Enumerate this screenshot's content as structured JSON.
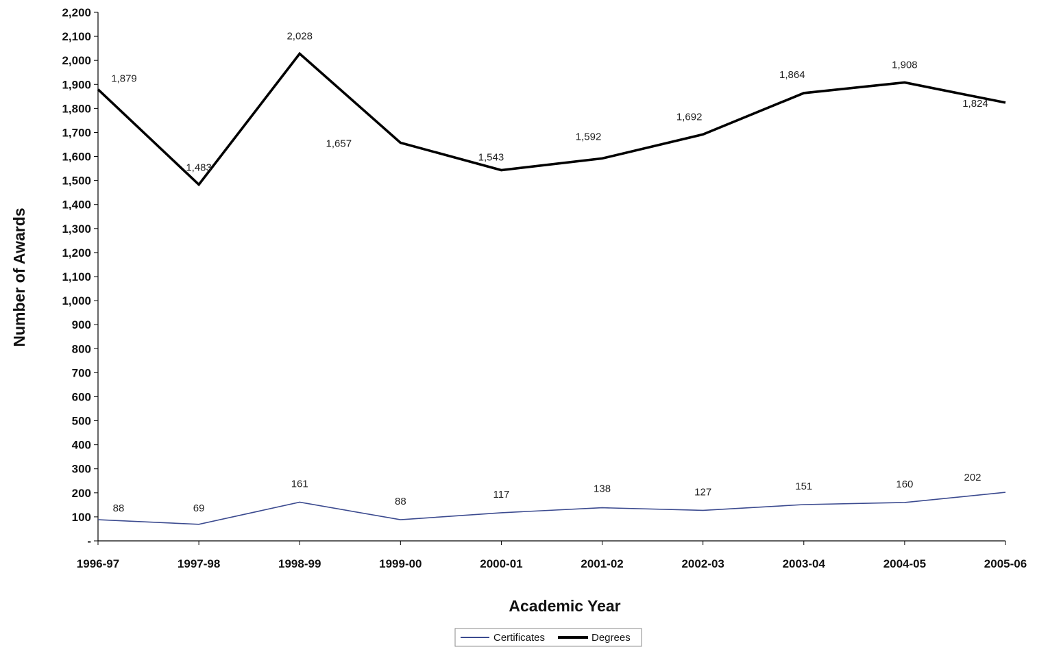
{
  "chart_data": {
    "type": "line",
    "title": "",
    "xlabel": "Academic Year",
    "ylabel": "Number of Awards",
    "categories": [
      "1996-97",
      "1997-98",
      "1998-99",
      "1999-00",
      "2000-01",
      "2001-02",
      "2002-03",
      "2003-04",
      "2004-05",
      "2005-06"
    ],
    "ylim": [
      0,
      2200
    ],
    "ytick_step": 100,
    "y_zero_label": "-",
    "grid": false,
    "legend_position": "bottom-center",
    "series": [
      {
        "name": "Certificates",
        "color": "#3b4a8f",
        "values": [
          88,
          69,
          161,
          88,
          117,
          138,
          127,
          151,
          160,
          202
        ],
        "labels": [
          "88",
          "69",
          "161",
          "88",
          "117",
          "138",
          "127",
          "151",
          "160",
          "202"
        ]
      },
      {
        "name": "Degrees",
        "color": "#000000",
        "values": [
          1879,
          1483,
          2028,
          1657,
          1543,
          1592,
          1692,
          1864,
          1908,
          1824
        ],
        "labels": [
          "1,879",
          "1,483",
          "2,028",
          "1,657",
          "1,543",
          "1,592",
          "1,692",
          "1,864",
          "1,908",
          "1,824"
        ]
      }
    ]
  }
}
